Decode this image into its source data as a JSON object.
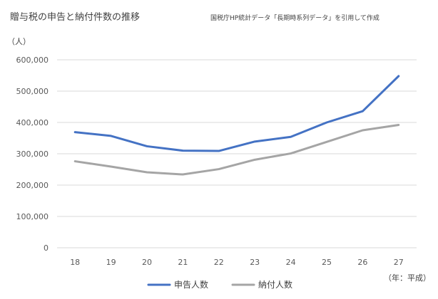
{
  "chart_data": {
    "type": "line",
    "title": "贈与税の申告と納付件数の推移",
    "source_note": "国税庁HP統計データ「長期時系列データ」を引用して作成",
    "ylabel": "（人）",
    "xlabel": "（年：平成）",
    "categories": [
      "18",
      "19",
      "20",
      "21",
      "22",
      "23",
      "24",
      "25",
      "26",
      "27"
    ],
    "ylim": [
      0,
      600000
    ],
    "yticks": [
      "0",
      "100,000",
      "200,000",
      "300,000",
      "400,000",
      "500,000",
      "600,000"
    ],
    "grid": true,
    "legend_position": "bottom",
    "series": [
      {
        "name": "申告人数",
        "color": "#4472c4",
        "values": [
          369000,
          357000,
          324000,
          310000,
          309000,
          339000,
          354000,
          400000,
          436000,
          548000
        ]
      },
      {
        "name": "納付人数",
        "color": "#a5a5a5",
        "values": [
          276000,
          259000,
          241000,
          234000,
          251000,
          281000,
          301000,
          338000,
          375000,
          392000
        ]
      }
    ]
  }
}
